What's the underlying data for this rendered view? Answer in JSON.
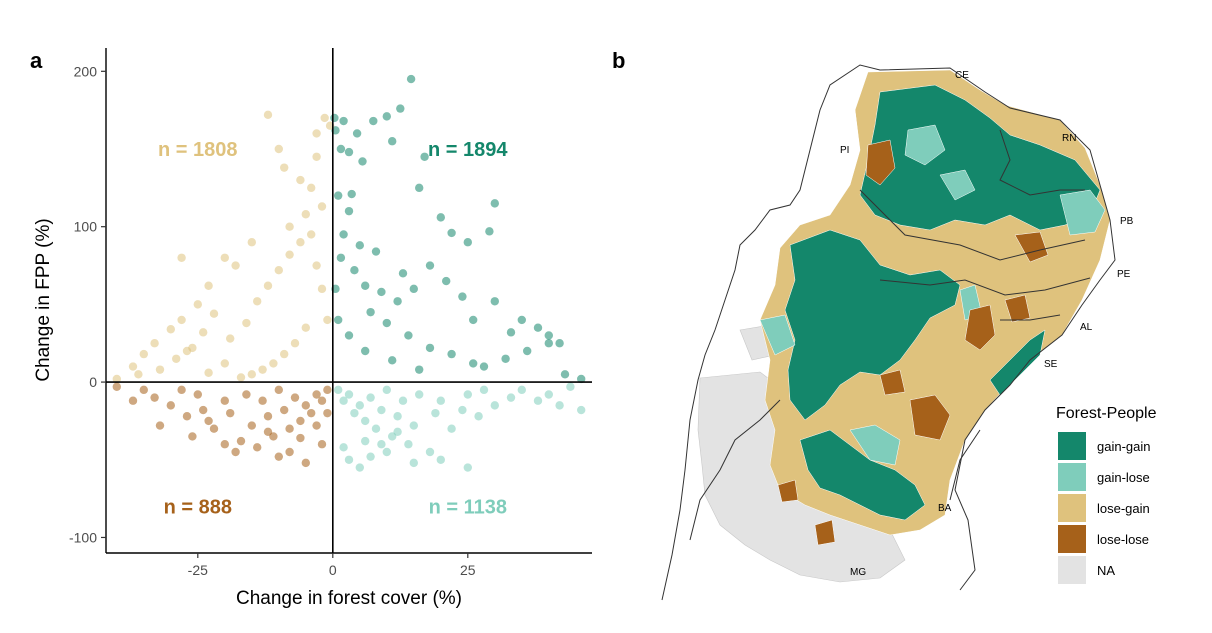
{
  "panel_labels": {
    "a": "a",
    "b": "b"
  },
  "colors": {
    "gain_gain": "#14876b",
    "gain_lose": "#7fcdbb",
    "lose_gain": "#dfc27d",
    "lose_lose": "#a6611a",
    "na": "#e3e3e3"
  },
  "chart_data": [
    {
      "type": "scatter",
      "panel": "a",
      "xlabel": "Change in forest cover (%)",
      "ylabel": "Change in FPP (%)",
      "xlim": [
        -42,
        48
      ],
      "ylim": [
        -110,
        215
      ],
      "x_ticks": [
        -25,
        0,
        25
      ],
      "y_ticks": [
        -100,
        0,
        100,
        200
      ],
      "x_tick_labels": [
        "-25",
        "0",
        "25"
      ],
      "y_tick_labels": [
        "-100",
        "0",
        "100",
        "200"
      ],
      "reference_lines": {
        "x": 0,
        "y": 0
      },
      "grid": false,
      "quadrant_counts": [
        {
          "quadrant": "lose-gain",
          "text": "n = 1808",
          "x": -25,
          "y": 150,
          "color": "#dfc27d"
        },
        {
          "quadrant": "gain-gain",
          "text": "n = 1894",
          "x": 25,
          "y": 150,
          "color": "#14876b"
        },
        {
          "quadrant": "lose-lose",
          "text": "n = 888",
          "x": -25,
          "y": -80,
          "color": "#a6611a"
        },
        {
          "quadrant": "gain-lose",
          "text": "n = 1138",
          "x": 25,
          "y": -80,
          "color": "#7fcdbb"
        }
      ],
      "series": [
        {
          "quadrant": "gain-gain",
          "color": "#14876b",
          "points": [
            [
              0.3,
              170
            ],
            [
              0.5,
              162
            ],
            [
              1.5,
              150
            ],
            [
              2.0,
              168
            ],
            [
              3.0,
              148
            ],
            [
              3.5,
              121
            ],
            [
              4.5,
              160
            ],
            [
              5.5,
              142
            ],
            [
              7.5,
              168
            ],
            [
              10,
              171
            ],
            [
              12.5,
              176
            ],
            [
              14.5,
              195
            ],
            [
              11,
              155
            ],
            [
              16,
              125
            ],
            [
              17,
              145
            ],
            [
              20,
              106
            ],
            [
              22,
              96
            ],
            [
              25,
              90
            ],
            [
              29,
              97
            ],
            [
              30,
              115
            ],
            [
              18,
              75
            ],
            [
              15,
              60
            ],
            [
              24,
              55
            ],
            [
              30,
              52
            ],
            [
              35,
              40
            ],
            [
              38,
              35
            ],
            [
              40,
              30
            ],
            [
              42,
              25
            ],
            [
              40,
              25
            ],
            [
              36,
              20
            ],
            [
              32,
              15
            ],
            [
              28,
              10
            ],
            [
              43,
              5
            ],
            [
              46,
              2
            ],
            [
              33,
              32
            ],
            [
              26,
              40
            ],
            [
              21,
              65
            ],
            [
              13,
              70
            ],
            [
              8,
              84
            ],
            [
              5,
              88
            ],
            [
              3,
              110
            ],
            [
              1,
              120
            ],
            [
              2,
              95
            ],
            [
              6,
              62
            ],
            [
              9,
              58
            ],
            [
              12,
              52
            ],
            [
              4,
              72
            ],
            [
              1.5,
              80
            ],
            [
              7,
              45
            ],
            [
              10,
              38
            ],
            [
              14,
              30
            ],
            [
              18,
              22
            ],
            [
              22,
              18
            ],
            [
              26,
              12
            ],
            [
              16,
              8
            ],
            [
              11,
              14
            ],
            [
              6,
              20
            ],
            [
              3,
              30
            ],
            [
              1,
              40
            ],
            [
              0.5,
              60
            ]
          ]
        },
        {
          "quadrant": "gain-lose",
          "color": "#7fcdbb",
          "points": [
            [
              1,
              -5
            ],
            [
              2,
              -12
            ],
            [
              3,
              -8
            ],
            [
              4,
              -20
            ],
            [
              5,
              -15
            ],
            [
              6,
              -25
            ],
            [
              7,
              -10
            ],
            [
              8,
              -30
            ],
            [
              9,
              -18
            ],
            [
              10,
              -5
            ],
            [
              11,
              -35
            ],
            [
              12,
              -22
            ],
            [
              13,
              -12
            ],
            [
              14,
              -40
            ],
            [
              15,
              -28
            ],
            [
              16,
              -8
            ],
            [
              18,
              -45
            ],
            [
              19,
              -20
            ],
            [
              20,
              -12
            ],
            [
              22,
              -30
            ],
            [
              24,
              -18
            ],
            [
              25,
              -8
            ],
            [
              27,
              -22
            ],
            [
              28,
              -5
            ],
            [
              30,
              -15
            ],
            [
              33,
              -10
            ],
            [
              35,
              -5
            ],
            [
              38,
              -12
            ],
            [
              40,
              -8
            ],
            [
              42,
              -15
            ],
            [
              46,
              -18
            ],
            [
              44,
              -3
            ],
            [
              3,
              -50
            ],
            [
              5,
              -55
            ],
            [
              7,
              -48
            ],
            [
              10,
              -45
            ],
            [
              25,
              -55
            ],
            [
              20,
              -50
            ],
            [
              15,
              -52
            ],
            [
              2,
              -42
            ],
            [
              6,
              -38
            ],
            [
              9,
              -40
            ],
            [
              12,
              -32
            ]
          ]
        },
        {
          "quadrant": "lose-gain",
          "color": "#dfc27d",
          "points": [
            [
              -0.5,
              165
            ],
            [
              -1.5,
              170
            ],
            [
              -3,
              160
            ],
            [
              -6,
              130
            ],
            [
              -9,
              138
            ],
            [
              -10,
              150
            ],
            [
              -12,
              172
            ],
            [
              -4,
              125
            ],
            [
              -3,
              145
            ],
            [
              -2,
              113
            ],
            [
              -5,
              108
            ],
            [
              -8,
              100
            ],
            [
              -15,
              90
            ],
            [
              -18,
              75
            ],
            [
              -20,
              80
            ],
            [
              -23,
              62
            ],
            [
              -25,
              50
            ],
            [
              -28,
              40
            ],
            [
              -30,
              34
            ],
            [
              -33,
              25
            ],
            [
              -35,
              18
            ],
            [
              -37,
              10
            ],
            [
              -36,
              5
            ],
            [
              -32,
              8
            ],
            [
              -29,
              15
            ],
            [
              -26,
              22
            ],
            [
              -24,
              32
            ],
            [
              -22,
              44
            ],
            [
              -28,
              80
            ],
            [
              -27,
              20
            ],
            [
              -19,
              28
            ],
            [
              -16,
              38
            ],
            [
              -14,
              52
            ],
            [
              -12,
              62
            ],
            [
              -10,
              72
            ],
            [
              -8,
              82
            ],
            [
              -6,
              90
            ],
            [
              -4,
              95
            ],
            [
              -3,
              75
            ],
            [
              -2,
              60
            ],
            [
              -1,
              40
            ],
            [
              -5,
              35
            ],
            [
              -7,
              25
            ],
            [
              -9,
              18
            ],
            [
              -11,
              12
            ],
            [
              -13,
              8
            ],
            [
              -15,
              5
            ],
            [
              -17,
              3
            ],
            [
              -20,
              12
            ],
            [
              -23,
              6
            ],
            [
              -40,
              2
            ]
          ]
        },
        {
          "quadrant": "lose-lose",
          "color": "#a6611a",
          "points": [
            [
              -1,
              -5
            ],
            [
              -2,
              -12
            ],
            [
              -3,
              -8
            ],
            [
              -4,
              -20
            ],
            [
              -5,
              -15
            ],
            [
              -6,
              -25
            ],
            [
              -7,
              -10
            ],
            [
              -8,
              -30
            ],
            [
              -9,
              -18
            ],
            [
              -10,
              -5
            ],
            [
              -11,
              -35
            ],
            [
              -12,
              -22
            ],
            [
              -13,
              -12
            ],
            [
              -14,
              -42
            ],
            [
              -15,
              -28
            ],
            [
              -16,
              -8
            ],
            [
              -18,
              -45
            ],
            [
              -19,
              -20
            ],
            [
              -20,
              -12
            ],
            [
              -22,
              -30
            ],
            [
              -24,
              -18
            ],
            [
              -25,
              -8
            ],
            [
              -27,
              -22
            ],
            [
              -28,
              -5
            ],
            [
              -30,
              -15
            ],
            [
              -33,
              -10
            ],
            [
              -35,
              -5
            ],
            [
              -37,
              -12
            ],
            [
              -40,
              -3
            ],
            [
              -32,
              -28
            ],
            [
              -26,
              -35
            ],
            [
              -20,
              -40
            ],
            [
              -10,
              -48
            ],
            [
              -5,
              -52
            ],
            [
              -2,
              -40
            ],
            [
              -8,
              -45
            ],
            [
              -17,
              -38
            ],
            [
              -23,
              -25
            ],
            [
              -12,
              -32
            ],
            [
              -6,
              -36
            ],
            [
              -3,
              -28
            ],
            [
              -1,
              -20
            ]
          ]
        }
      ]
    },
    {
      "type": "map",
      "panel": "b",
      "legend_title": "Forest-People",
      "legend_placement": "right",
      "legend_items": [
        {
          "label": "gain-gain",
          "color": "#14876b"
        },
        {
          "label": "gain-lose",
          "color": "#7fcdbb"
        },
        {
          "label": "lose-gain",
          "color": "#dfc27d"
        },
        {
          "label": "lose-lose",
          "color": "#a6611a"
        },
        {
          "label": "NA",
          "color": "#e3e3e3"
        }
      ],
      "state_labels": [
        "CE",
        "RN",
        "PI",
        "PB",
        "PE",
        "AL",
        "SE",
        "BA",
        "MG"
      ]
    }
  ]
}
